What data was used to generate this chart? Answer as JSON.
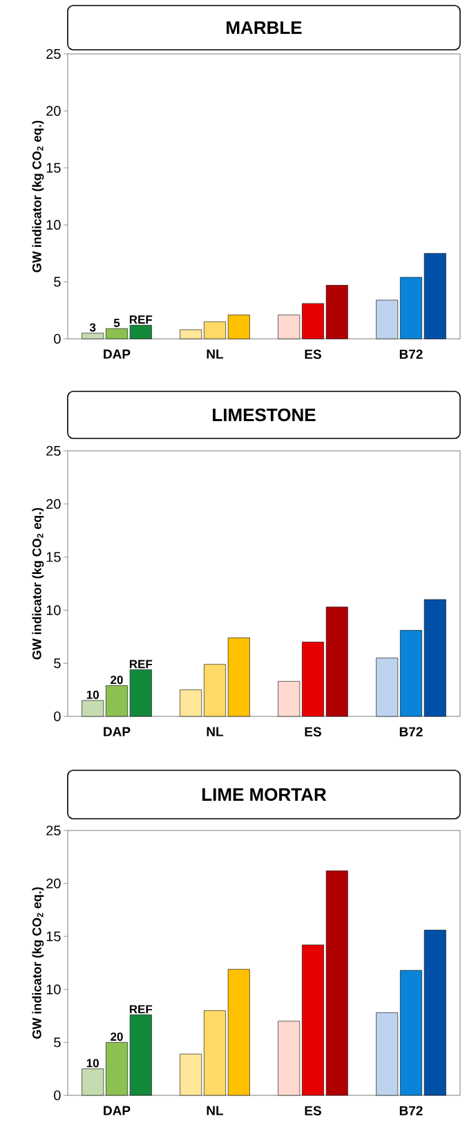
{
  "chart_data": [
    {
      "type": "bar",
      "title": "MARBLE",
      "ylabel": "GW indicator (kg CO$_{2}$ eq.)",
      "categories": [
        "DAP",
        "NL",
        "ES",
        "B72"
      ],
      "series": [
        {
          "colors": [
            "#c5dcb0",
            "#ffe699",
            "#ffd9d0",
            "#bdd3ee"
          ],
          "values": [
            0.5,
            0.8,
            2.1,
            3.4
          ]
        },
        {
          "colors": [
            "#8cc152",
            "#ffd966",
            "#e60000",
            "#0a84d8"
          ],
          "values": [
            0.9,
            1.5,
            3.1,
            5.4
          ]
        },
        {
          "colors": [
            "#128a3a",
            "#ffc000",
            "#b00000",
            "#0050a8"
          ],
          "values": [
            1.2,
            2.1,
            4.7,
            7.5
          ]
        }
      ],
      "ylim": [
        0,
        25
      ],
      "yticks": [
        0,
        5,
        10,
        15,
        20,
        25
      ],
      "annotations": [
        "3",
        "5",
        "REF"
      ]
    },
    {
      "type": "bar",
      "title": "LIMESTONE",
      "ylabel": "GW indicator (kg CO$_{2}$ eq.)",
      "categories": [
        "DAP",
        "NL",
        "ES",
        "B72"
      ],
      "series": [
        {
          "colors": [
            "#c5dcb0",
            "#ffe699",
            "#ffd9d0",
            "#bdd3ee"
          ],
          "values": [
            1.5,
            2.5,
            3.3,
            5.5
          ]
        },
        {
          "colors": [
            "#8cc152",
            "#ffd966",
            "#e60000",
            "#0a84d8"
          ],
          "values": [
            2.9,
            4.9,
            7.0,
            8.1
          ]
        },
        {
          "colors": [
            "#128a3a",
            "#ffc000",
            "#b00000",
            "#0050a8"
          ],
          "values": [
            4.4,
            7.4,
            10.3,
            11.0
          ]
        }
      ],
      "ylim": [
        0,
        25
      ],
      "yticks": [
        0,
        5,
        10,
        15,
        20,
        25
      ],
      "annotations": [
        "10",
        "20",
        "REF"
      ]
    },
    {
      "type": "bar",
      "title": "LIME MORTAR",
      "ylabel": "GW indicator (kg CO$_{2}$ eq.)",
      "categories": [
        "DAP",
        "NL",
        "ES",
        "B72"
      ],
      "series": [
        {
          "colors": [
            "#c5dcb0",
            "#ffe699",
            "#ffd9d0",
            "#bdd3ee"
          ],
          "values": [
            2.5,
            3.9,
            7.0,
            7.8
          ]
        },
        {
          "colors": [
            "#8cc152",
            "#ffd966",
            "#e60000",
            "#0a84d8"
          ],
          "values": [
            5.0,
            8.0,
            14.2,
            11.8
          ]
        },
        {
          "colors": [
            "#128a3a",
            "#ffc000",
            "#b00000",
            "#0050a8"
          ],
          "values": [
            7.6,
            11.9,
            21.2,
            15.6
          ]
        }
      ],
      "ylim": [
        0,
        25
      ],
      "yticks": [
        0,
        5,
        10,
        15,
        20,
        25
      ],
      "annotations": [
        "10",
        "20",
        "REF"
      ]
    }
  ]
}
